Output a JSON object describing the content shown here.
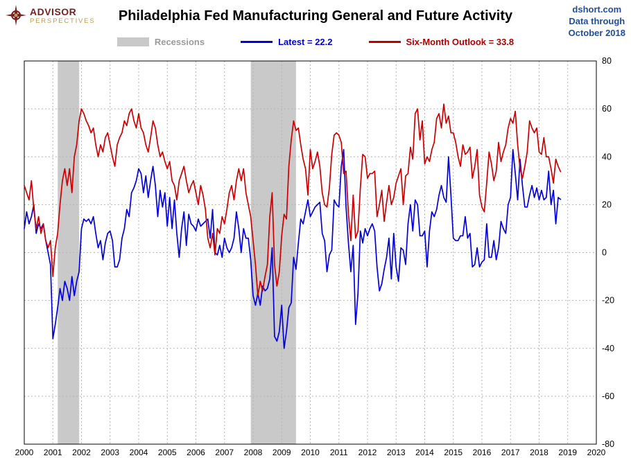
{
  "header": {
    "logo": {
      "line1": "ADVISOR",
      "line2": "PERSPECTIVES"
    },
    "title": "Philadelphia Fed Manufacturing General and Future Activity",
    "source": {
      "line1": "dshort.com",
      "line2": "Data through",
      "line3": "October 2018"
    }
  },
  "legend": {
    "recessions": "Recessions",
    "latest": "Latest = 22.2",
    "outlook": "Six-Month Outlook = 33.8"
  },
  "chart_data": {
    "type": "line",
    "title": "Philadelphia Fed Manufacturing General and Future Activity",
    "x_start": {
      "year": 2000,
      "month": 1
    },
    "x_end": {
      "year": 2018,
      "month": 10
    },
    "xlim": [
      2000,
      2020
    ],
    "ylim": [
      -80,
      80
    ],
    "yticks": [
      -80,
      -60,
      -40,
      -20,
      0,
      20,
      40,
      60,
      80
    ],
    "xticks": [
      2000,
      2001,
      2002,
      2003,
      2004,
      2005,
      2006,
      2007,
      2008,
      2009,
      2010,
      2011,
      2012,
      2013,
      2014,
      2015,
      2016,
      2017,
      2018,
      2019,
      2020
    ],
    "grid": "dashed",
    "legend_position": "top",
    "colors": {
      "latest": "#0000dd",
      "outlook": "#cc0000",
      "recession": "#c9c9c9",
      "grid": "#b3b3b3",
      "frame": "#000000"
    },
    "recessions": [
      {
        "start": 2001.17,
        "end": 2001.92
      },
      {
        "start": 2007.92,
        "end": 2009.5
      }
    ],
    "series": [
      {
        "name": "Latest",
        "latest_value": 22.2,
        "color": "#0000dd",
        "values": [
          10,
          17,
          12,
          15,
          20,
          8,
          12,
          10,
          12,
          5,
          0,
          -5,
          -36,
          -30,
          -23,
          -15,
          -20,
          -12,
          -15,
          -20,
          -10,
          -18,
          -12,
          -8,
          10,
          14,
          13,
          14,
          12,
          15,
          8,
          2,
          5,
          -3,
          4,
          8,
          9,
          5,
          -6,
          -6,
          -3,
          6,
          10,
          18,
          15,
          25,
          27,
          30,
          35,
          33,
          25,
          32,
          23,
          30,
          36,
          28,
          15,
          26,
          19,
          25,
          11,
          23,
          10,
          22,
          8,
          -2,
          10,
          17,
          3,
          16,
          12,
          11,
          9,
          14,
          11,
          12,
          13,
          14,
          6,
          18,
          0,
          -1,
          3,
          -2,
          6,
          2,
          0,
          2,
          6,
          17,
          10,
          0,
          10,
          6,
          6,
          -3,
          -18,
          -22,
          -17,
          -22,
          -14,
          -16,
          -15,
          -11,
          2,
          -35,
          -37,
          -33,
          -22,
          -40,
          -33,
          -23,
          -21,
          -2,
          -7,
          4,
          14,
          12,
          17,
          22,
          15,
          17,
          19,
          20,
          21,
          8,
          5,
          -8,
          -1,
          1,
          22,
          20,
          19,
          36,
          43,
          19,
          4,
          -8,
          3,
          -30,
          -17,
          9,
          4,
          10,
          7,
          10,
          12,
          9,
          -6,
          -16,
          -13,
          -7,
          -2,
          6,
          -11,
          8,
          -6,
          -12,
          2,
          1,
          -5,
          12,
          20,
          9,
          22,
          20,
          7,
          7,
          9,
          -6,
          9,
          17,
          15,
          18,
          24,
          28,
          23,
          21,
          40,
          24,
          6,
          5,
          5,
          7,
          7,
          15,
          6,
          8,
          -6,
          -5,
          2,
          -6,
          -4,
          -3,
          12,
          -2,
          -2,
          5,
          -3,
          2,
          13,
          10,
          8,
          20,
          23,
          43,
          33,
          22,
          39,
          28,
          19,
          19,
          24,
          28,
          23,
          27,
          22,
          26,
          22,
          23,
          34,
          20,
          26,
          12,
          23,
          22.2
        ]
      },
      {
        "name": "Six-Month Outlook",
        "latest_value": 33.8,
        "color": "#cc0000",
        "values": [
          28,
          25,
          22,
          30,
          18,
          10,
          15,
          8,
          12,
          5,
          2,
          5,
          -10,
          2,
          8,
          20,
          30,
          35,
          28,
          35,
          25,
          40,
          45,
          55,
          60,
          58,
          55,
          53,
          50,
          52,
          45,
          40,
          45,
          42,
          48,
          50,
          45,
          40,
          36,
          45,
          48,
          50,
          55,
          53,
          58,
          60,
          55,
          52,
          58,
          52,
          50,
          45,
          42,
          48,
          55,
          52,
          45,
          40,
          42,
          38,
          35,
          38,
          30,
          28,
          22,
          30,
          33,
          36,
          30,
          25,
          28,
          30,
          25,
          20,
          28,
          24,
          18,
          6,
          2,
          8,
          -1,
          10,
          8,
          15,
          12,
          18,
          25,
          28,
          22,
          30,
          35,
          30,
          35,
          25,
          20,
          15,
          5,
          -5,
          -18,
          -12,
          -16,
          -10,
          -5,
          15,
          25,
          -5,
          -14,
          -8,
          7,
          16,
          14,
          36,
          47,
          55,
          51,
          52,
          45,
          39,
          35,
          24,
          43,
          35,
          38,
          42,
          36,
          25,
          20,
          19,
          27,
          41,
          49,
          50,
          49,
          46,
          33,
          34,
          16,
          5,
          24,
          6,
          9,
          27,
          41,
          40,
          31,
          33,
          33,
          34,
          15,
          20,
          26,
          13,
          21,
          28,
          20,
          23,
          29,
          32,
          35,
          20,
          32,
          33,
          44,
          39,
          58,
          60,
          47,
          55,
          37,
          40,
          38,
          43,
          46,
          56,
          58,
          52,
          62,
          54,
          57,
          50,
          50,
          46,
          40,
          36,
          45,
          41,
          42,
          44,
          31,
          36,
          43,
          24,
          19,
          17,
          29,
          42,
          37,
          30,
          34,
          46,
          38,
          42,
          45,
          52,
          56,
          54,
          59,
          45,
          35,
          31,
          36,
          42,
          55,
          52,
          50,
          52,
          42,
          41,
          48,
          40,
          40,
          35,
          29,
          39,
          36,
          33.8
        ]
      }
    ]
  }
}
